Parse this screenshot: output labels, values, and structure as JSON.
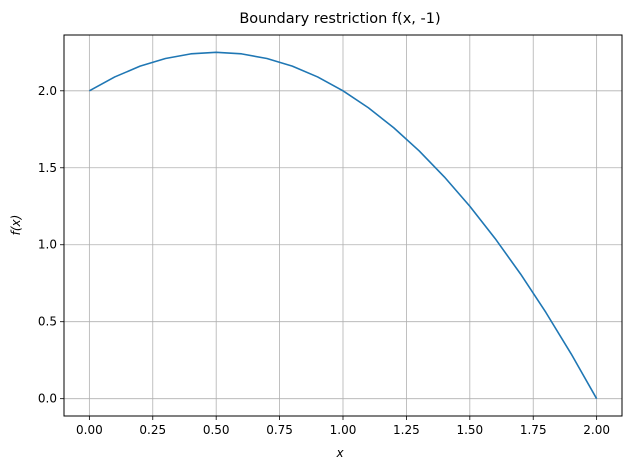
{
  "chart_data": {
    "type": "line",
    "title": "Boundary restriction f(x, -1)",
    "xlabel": "x",
    "ylabel": "f(x)",
    "xlim": [
      -0.1,
      2.1
    ],
    "ylim": [
      -0.1125,
      2.3625
    ],
    "x_ticks": [
      0.0,
      0.25,
      0.5,
      0.75,
      1.0,
      1.25,
      1.5,
      1.75,
      2.0
    ],
    "x_tick_labels": [
      "0.00",
      "0.25",
      "0.50",
      "0.75",
      "1.00",
      "1.25",
      "1.50",
      "1.75",
      "2.00"
    ],
    "y_ticks": [
      0.0,
      0.5,
      1.0,
      1.5,
      2.0
    ],
    "y_tick_labels": [
      "0.0",
      "0.5",
      "1.0",
      "1.5",
      "2.0"
    ],
    "grid": true,
    "series": [
      {
        "color": "#1f77b4",
        "x": [
          0.0,
          0.1,
          0.2,
          0.3,
          0.4,
          0.5,
          0.6,
          0.7,
          0.8,
          0.9,
          1.0,
          1.1,
          1.2,
          1.3,
          1.4,
          1.5,
          1.6,
          1.7,
          1.8,
          1.9,
          2.0
        ],
        "y": [
          2.0,
          2.09,
          2.16,
          2.21,
          2.24,
          2.25,
          2.24,
          2.21,
          2.16,
          2.09,
          2.0,
          1.89,
          1.76,
          1.61,
          1.44,
          1.25,
          1.04,
          0.81,
          0.56,
          0.29,
          0.0
        ]
      }
    ]
  }
}
